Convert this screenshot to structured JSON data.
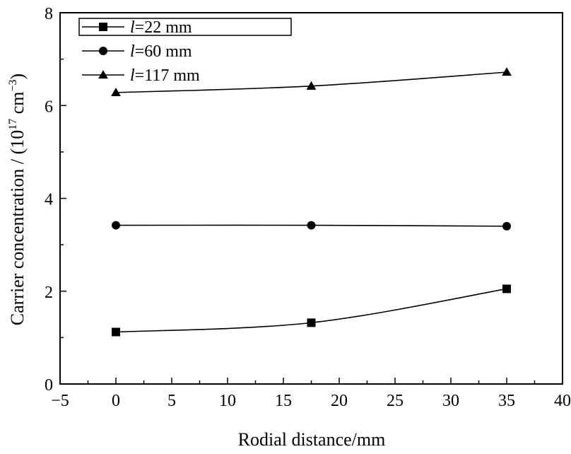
{
  "chart_data": {
    "type": "line",
    "xlabel": "Rodial distance/mm",
    "ylabel": {
      "prefix": "Carrier concentration / (10",
      "exp1": "17",
      "mid": " cm",
      "exp2": "−3",
      "suffix": ")"
    },
    "xlim": [
      -5,
      40
    ],
    "ylim": [
      0,
      8
    ],
    "xticks": [
      -5,
      0,
      5,
      10,
      15,
      20,
      25,
      30,
      35,
      40
    ],
    "xtick_labels": [
      "−5",
      "0",
      "5",
      "10",
      "15",
      "20",
      "25",
      "30",
      "35",
      "40"
    ],
    "yticks": [
      0,
      2,
      4,
      6,
      8
    ],
    "ytick_labels": [
      "0",
      "2",
      "4",
      "6",
      "8"
    ],
    "grid": false,
    "legend_position": "top-left",
    "series": [
      {
        "name": "l=22 mm",
        "label_var": "l",
        "label_rest": "=22 mm",
        "marker": "square",
        "x": [
          0,
          17.5,
          35
        ],
        "y": [
          1.12,
          1.32,
          2.05
        ]
      },
      {
        "name": "l=60 mm",
        "label_var": "l",
        "label_rest": "=60 mm",
        "marker": "circle",
        "x": [
          0,
          17.5,
          35
        ],
        "y": [
          3.42,
          3.42,
          3.4
        ]
      },
      {
        "name": "l=117 mm",
        "label_var": "l",
        "label_rest": "=117 mm",
        "marker": "triangle",
        "x": [
          0,
          17.5,
          35
        ],
        "y": [
          6.28,
          6.42,
          6.72
        ]
      }
    ]
  }
}
